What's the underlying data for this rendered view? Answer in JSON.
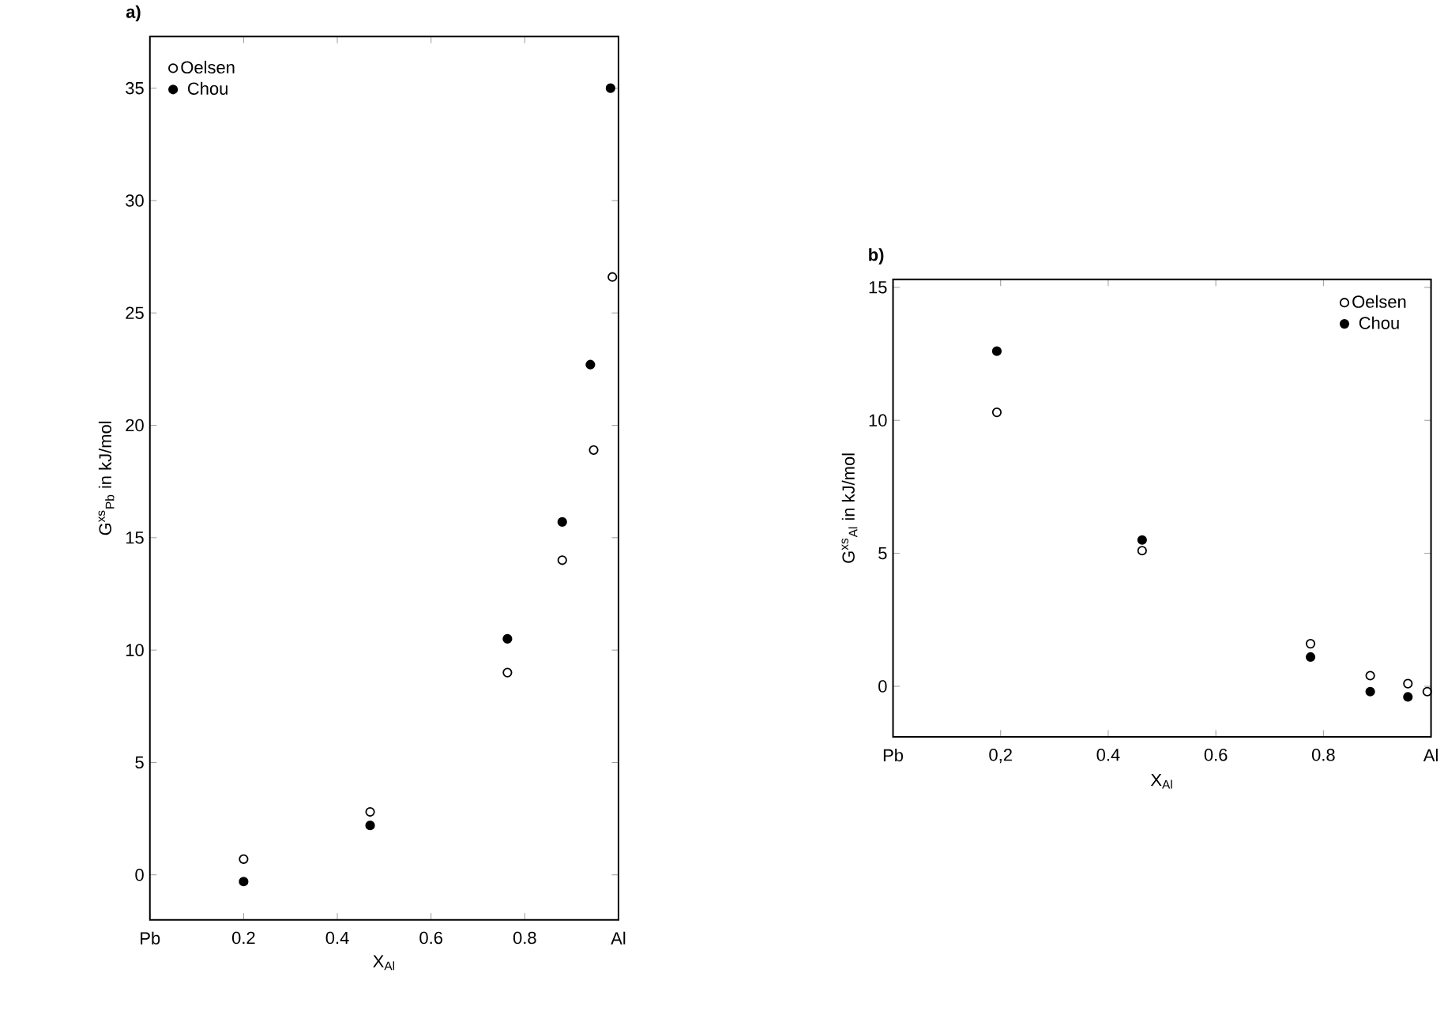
{
  "chart_data": [
    {
      "type": "scatter",
      "title": "a)",
      "xlabel": "X$_{Al}$",
      "ylabel": "G$^{xs}$$_{Pb}$ in kJ/mol",
      "legend": "top left",
      "xlim": [
        0,
        1
      ],
      "ylim": [
        -2,
        37.3
      ],
      "xticks": [
        {
          "value": 0,
          "label": "Pb"
        },
        0.2,
        0.4,
        0.6,
        0.8,
        {
          "value": 1,
          "label": "Al"
        }
      ],
      "yticks": [
        0,
        5,
        10,
        15,
        20,
        25,
        30,
        35
      ],
      "series": [
        {
          "name": "Oelsen",
          "color": "#000000",
          "marker": "open circle",
          "x": [
            0.2,
            0.47,
            0.763,
            0.88,
            0.947,
            0.987
          ],
          "values": [
            0.7,
            2.8,
            9.0,
            14.0,
            18.9,
            26.6
          ]
        },
        {
          "name": "Chou",
          "color": "#000000",
          "marker": "circle",
          "x": [
            0.2,
            0.47,
            0.763,
            0.88,
            0.94,
            0.983
          ],
          "values": [
            -0.3,
            2.2,
            10.5,
            15.7,
            22.7,
            35.0
          ]
        }
      ]
    },
    {
      "type": "scatter",
      "title": "b)",
      "xlabel": "X$_{Al}$",
      "ylabel": "G$^{xs}$$_{Al}$ in kJ/mol",
      "legend": "top right",
      "xlim": [
        0,
        1
      ],
      "ylim": [
        -1.9,
        15.3
      ],
      "xticks": [
        {
          "value": 0,
          "label": "Pb"
        },
        {
          "value": 0.2,
          "label": "0,2"
        },
        0.4,
        0.6,
        0.8,
        {
          "value": 1,
          "label": "Al"
        }
      ],
      "yticks": [
        0,
        5,
        10,
        15
      ],
      "series": [
        {
          "name": "Oelsen",
          "color": "#000000",
          "marker": "open circle",
          "x": [
            0.193,
            0.463,
            0.776,
            0.887,
            0.957,
            0.993
          ],
          "values": [
            10.3,
            5.1,
            1.6,
            0.4,
            0.1,
            -0.2
          ]
        },
        {
          "name": "Chou",
          "color": "#000000",
          "marker": "circle",
          "x": [
            0.193,
            0.463,
            0.776,
            0.887,
            0.957
          ],
          "values": [
            12.6,
            5.5,
            1.1,
            -0.2,
            -0.4
          ]
        }
      ]
    }
  ]
}
